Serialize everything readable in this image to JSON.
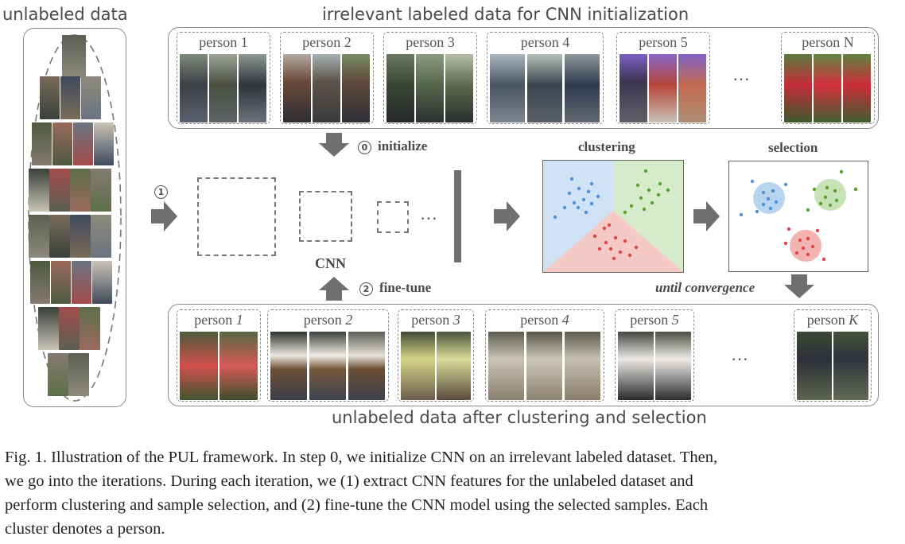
{
  "headings": {
    "unlabeled": "unlabeled data",
    "irrelevant": "irrelevant labeled data for CNN initialization",
    "after": "unlabeled data after clustering and selection"
  },
  "top_persons": [
    "person 1",
    "person 2",
    "person 3",
    "person 4",
    "person 5",
    "person N"
  ],
  "bottom_persons": [
    {
      "prefix": "person ",
      "num": "1"
    },
    {
      "prefix": "person ",
      "num": "2"
    },
    {
      "prefix": "person ",
      "num": "3"
    },
    {
      "prefix": "person ",
      "num": "4"
    },
    {
      "prefix": "person ",
      "num": "5"
    },
    {
      "prefix": "person ",
      "num": "K"
    }
  ],
  "ellipsis": "…",
  "steps": {
    "initialize_num": "0",
    "initialize": "initialize",
    "finetune_num": "2",
    "finetune": "fine-tune",
    "extract_num": "1"
  },
  "labels": {
    "cnn": "CNN",
    "clustering": "clustering",
    "selection": "selection",
    "until": "until convergence"
  },
  "cluster_colors": {
    "blue": "#5b9bd5",
    "green": "#6aaa3a",
    "red": "#e05a5a",
    "bg_blue": "#cfe2f6",
    "bg_green": "#d6ebc9",
    "bg_red": "#f5c9c6"
  },
  "caption": {
    "line1": "Fig. 1.  Illustration of the PUL framework. In step 0, we initialize CNN on an irrelevant labeled dataset. Then,",
    "line2": "we go into the iterations. During each iteration, we (1) extract CNN features for the unlabeled dataset and",
    "line3": "perform clustering and sample selection, and (2) fine-tune the CNN model using the selected samples. Each",
    "line4": "cluster denotes a person."
  }
}
